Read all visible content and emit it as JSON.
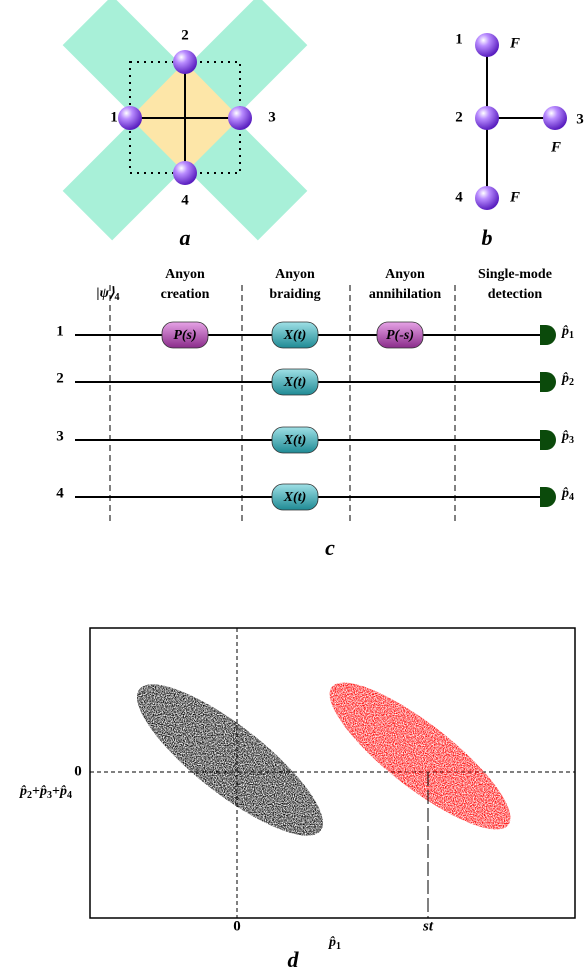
{
  "panel_a": {
    "label": "a",
    "sites": [
      "1",
      "2",
      "3",
      "4"
    ]
  },
  "panel_b": {
    "label": "b",
    "nodes": [
      "1",
      "2",
      "3",
      "4"
    ],
    "node_labels": [
      "F",
      "F",
      "F"
    ]
  },
  "panel_c": {
    "label": "c",
    "state": {
      "ket": "|ψ⟩",
      "index": "4"
    },
    "stages": [
      [
        "Anyon",
        "creation"
      ],
      [
        "Anyon",
        "braiding"
      ],
      [
        "Anyon",
        "annihilation"
      ],
      [
        "Single-mode",
        "detection"
      ]
    ],
    "modes": [
      "1",
      "2",
      "3",
      "4"
    ],
    "gates": [
      "P(s)",
      "X(t)",
      "P(-s)"
    ],
    "detectors": [
      {
        "symbol": "p̂",
        "index": "1"
      },
      {
        "symbol": "p̂",
        "index": "2"
      },
      {
        "symbol": "p̂",
        "index": "3"
      },
      {
        "symbol": "p̂",
        "index": "4"
      }
    ]
  },
  "panel_d": {
    "label": "d",
    "x_label": {
      "symbol": "p̂",
      "index": "1"
    },
    "y_label": {
      "terms": [
        {
          "symbol": "p̂",
          "index": "2"
        },
        {
          "symbol": "p̂",
          "index": "3"
        },
        {
          "symbol": "p̂",
          "index": "4"
        }
      ],
      "operator": "+"
    },
    "x_ticks": [
      "0",
      "st"
    ],
    "y_ticks": [
      "0"
    ]
  }
}
